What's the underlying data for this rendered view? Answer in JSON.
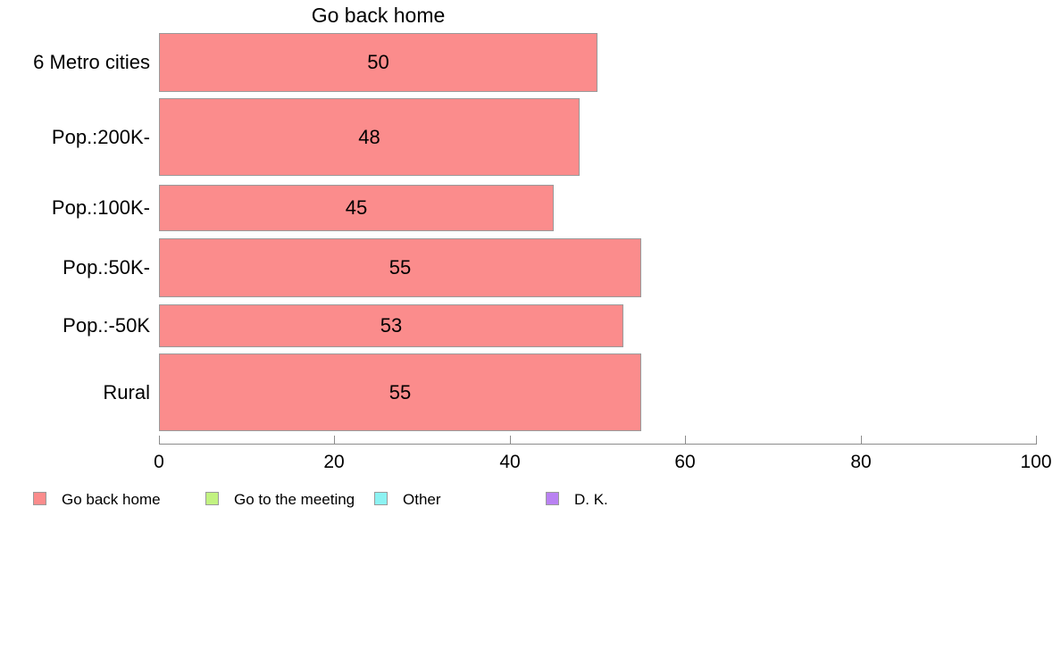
{
  "chart_data": {
    "type": "bar",
    "orientation": "horizontal",
    "title": "Go back home",
    "categories": [
      "6 Metro cities",
      "Pop.:200K-",
      "Pop.:100K-",
      "Pop.:50K-",
      "Pop.:-50K",
      "Rural"
    ],
    "values": [
      50,
      48,
      45,
      55,
      53,
      55
    ],
    "xlabel": "",
    "ylabel": "",
    "xlim": [
      0,
      100
    ],
    "x_ticks": [
      "0",
      "20",
      "40",
      "60",
      "80",
      "100"
    ],
    "x_tick_values": [
      0,
      20,
      40,
      60,
      80,
      100
    ],
    "grid": false,
    "bar_color": "#FB8C8C",
    "bar_border_color": "#9A9A9A",
    "background_color": "#FFFFFF",
    "legend": {
      "position": "bottom-left",
      "items": [
        {
          "label": "Go back home",
          "color": "#FB8C8C"
        },
        {
          "label": "Go to the meeting",
          "color": "#C2F281"
        },
        {
          "label": "Other",
          "color": "#8CF2F2"
        },
        {
          "label": "D. K.",
          "color": "#B981F2"
        }
      ]
    }
  }
}
